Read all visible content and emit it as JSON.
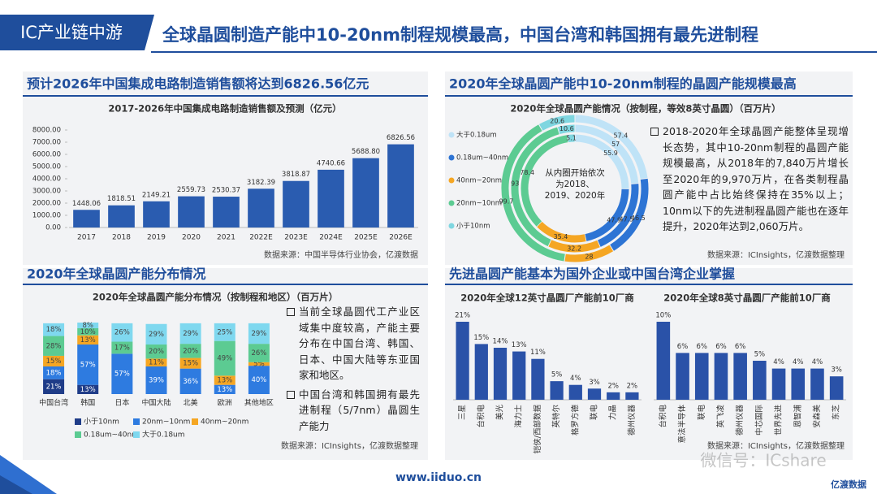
{
  "header": {
    "tag": "IC产业链中游",
    "title": "全球晶圆制造产能中10-20nm制程规模最高，中国台湾和韩国拥有最先进制程"
  },
  "panels": [
    {
      "heading": "预计2026年中国集成电路制造销售额将达到6826.56亿元",
      "source": "数据来源：中国半导体行业协会，亿渡数据"
    },
    {
      "heading": "2020年全球晶圆产能中10-20nm制程的晶圆产能规模最高",
      "source": "数据来源：ICInsights，亿渡数据整理",
      "text": "2018-2020年全球晶圆产能整体呈现增长态势，其中10-20nm制程的晶圆产能规模最高，从2018年的7,840万片增长至2020年的9,970万片，在各类制程晶圆产能中占比始终保持在35%以上；10nm以下的先进制程晶圆产能也在逐年提升，2020年达到2,060万片。"
    },
    {
      "heading": "2020年全球晶圆产能分布情况",
      "source": "数据来源：ICInsights，亿渡数据整理",
      "bullets": [
        "当前全球晶圆代工产业区域集中度较高，产能主要分布在中国台湾、韩国、日本、中国大陆等东亚国家和地区。",
        "中国台湾和韩国拥有最先进制程（5/7nm）晶圆生产能力"
      ]
    },
    {
      "heading": "先进晶圆产能基本为国外企业或中国台湾企业掌握",
      "source": "数据来源：ICInsights，亿渡数据整理"
    }
  ],
  "chart_data": [
    {
      "type": "bar",
      "title": "2017-2026年中国集成电路制造销售额及预测（亿元）",
      "categories": [
        "2017",
        "2018",
        "2019",
        "2020",
        "2021",
        "2022E",
        "2023E",
        "2024E",
        "2025E",
        "2026E"
      ],
      "values": [
        1448.06,
        1818.51,
        2149.21,
        2559.73,
        2530.37,
        3182.39,
        3818.87,
        4740.66,
        5688.8,
        6826.56
      ],
      "value_labels": [
        "1448.06",
        "1818.51",
        "2149.21",
        "2559.73",
        "2530.37",
        "3182.39",
        "3818.87",
        "4740.66",
        "5688.80",
        "6826.56"
      ],
      "color": "#2a5cb0",
      "ylim": [
        0,
        8000
      ],
      "yticks": [
        {
          "value": 0,
          "label": "0.00"
        },
        {
          "value": 1000,
          "label": "1000.00"
        },
        {
          "value": 2000,
          "label": "2000.00"
        },
        {
          "value": 3000,
          "label": "3000.00"
        },
        {
          "value": 4000,
          "label": "4000.00"
        },
        {
          "value": 5000,
          "label": "5000.00"
        },
        {
          "value": 6000,
          "label": "6000.00"
        },
        {
          "value": 7000,
          "label": "7000.00"
        },
        {
          "value": 8000,
          "label": "8000.00"
        }
      ]
    },
    {
      "type": "donut",
      "title": "2020年全球晶圆产能情况（按制程，等效8英寸晶圆）（百万片）",
      "note": "从内圈开始依次为2018、2019、2020年",
      "categories": [
        "大于0.18um",
        "0.18um~40nm",
        "40nm~20nm",
        "20nm~10nm",
        "小于10nm"
      ],
      "colors": [
        "#bfe3f7",
        "#2d74d4",
        "#f5a623",
        "#5ccb92",
        "#7fd6e0"
      ],
      "rings": [
        {
          "values": [
            55.9,
            47.9,
            35.4,
            78.4,
            5.1
          ]
        },
        {
          "values": [
            57,
            47.5,
            32.2,
            93,
            10.6
          ]
        },
        {
          "values": [
            57.4,
            46.5,
            28,
            99.7,
            20.6
          ]
        }
      ]
    },
    {
      "type": "stacked_bar",
      "title": "2020年全球晶圆产能分布情况（按制程和地区）（百万片）",
      "categories": [
        "中国台湾",
        "韩国",
        "日本",
        "中国大陆",
        "北美",
        "欧洲",
        "其他地区"
      ],
      "series": [
        {
          "name": "小于10nm",
          "color": "#1f3c88",
          "values": [
            21,
            13,
            null,
            null,
            null,
            null,
            null
          ],
          "value_labels": [
            "21%",
            "13%",
            null,
            null,
            null,
            null,
            null
          ]
        },
        {
          "name": "20nm~10nm",
          "color": "#2e7be0",
          "values": [
            18,
            57,
            57,
            39,
            36,
            13,
            40
          ],
          "value_labels": [
            "18%",
            "57%",
            "57%",
            "39%",
            "36%",
            "13%",
            "40%"
          ]
        },
        {
          "name": "40nm~20nm",
          "color": "#f5a623",
          "values": [
            15,
            13,
            null,
            11,
            15,
            13,
            5
          ],
          "value_labels": [
            "15%",
            "13%",
            null,
            "11%",
            "15%",
            "13%",
            "5%"
          ]
        },
        {
          "name": "0.18um~40nm",
          "color": "#5ccb92",
          "values": [
            28,
            10,
            17,
            20,
            20,
            49,
            26
          ],
          "value_labels": [
            "28%",
            "10%",
            "17%",
            "20%",
            "20%",
            "49%",
            "26%"
          ]
        },
        {
          "name": "大于0.18um",
          "color": "#7fd8ef",
          "values": [
            18,
            8,
            26,
            29,
            29,
            25,
            29
          ],
          "value_labels": [
            "18%",
            "8%",
            "26%",
            "29%",
            "29%",
            "25%",
            "29%"
          ]
        }
      ]
    },
    {
      "type": "bar",
      "title": "2020年全球12英寸晶圆厂产能前10厂商",
      "categories": [
        "三星",
        "台积电",
        "美光",
        "海力士",
        "铠侠/西部数据",
        "英特尔",
        "格罗方德",
        "联电",
        "力晶",
        "德州仪器"
      ],
      "values": [
        21,
        15,
        14,
        13,
        11,
        5,
        4,
        3,
        2,
        2
      ],
      "value_labels": [
        "21%",
        "15%",
        "14%",
        "13%",
        "11%",
        "5%",
        "4%",
        "3%",
        "2%",
        "2%"
      ],
      "color": "#2a52a8"
    },
    {
      "type": "bar",
      "title": "2020年全球8英寸晶圆厂产能前10厂商",
      "categories": [
        "台积电",
        "意法半导体",
        "联电",
        "英飞凌",
        "德州仪器",
        "中芯国际",
        "世界先进",
        "恩智浦",
        "安森美",
        "东芝"
      ],
      "values": [
        10,
        6,
        6,
        6,
        6,
        5,
        4,
        4,
        4,
        3
      ],
      "value_labels": [
        "10%",
        "6%",
        "6%",
        "6%",
        "6%",
        "5%",
        "4%",
        "4%",
        "4%",
        "3%"
      ],
      "color": "#2a52a8"
    }
  ],
  "footer": {
    "url": "www.iiduo.cn",
    "logo": "亿渡数据",
    "watermark": "微信号：ICshare"
  }
}
